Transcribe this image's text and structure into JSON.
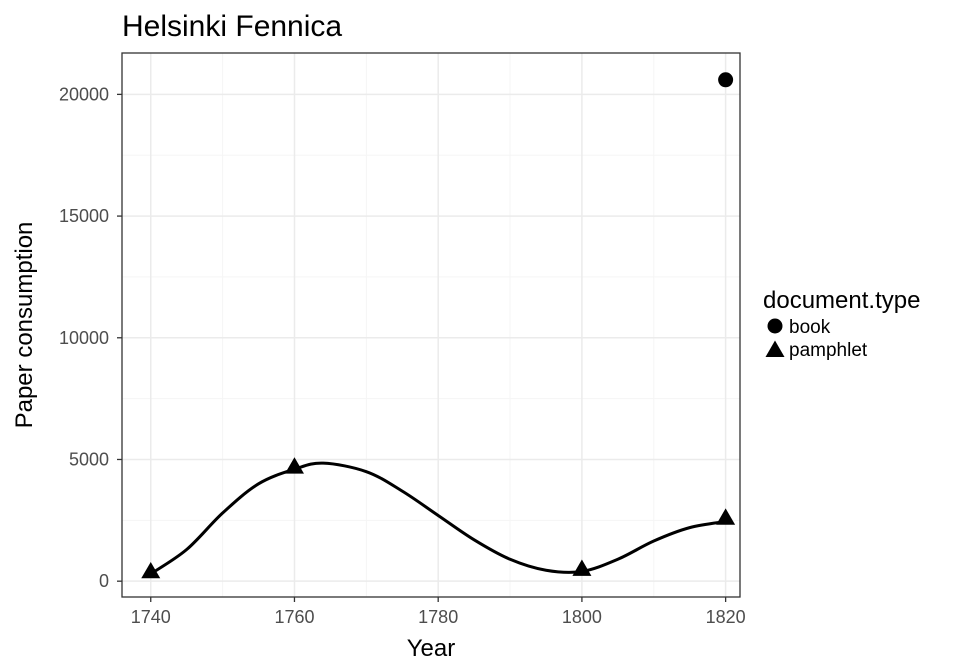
{
  "chart_data": {
    "type": "scatter",
    "title": "Helsinki Fennica",
    "xlabel": "Year",
    "ylabel": "Paper consumption",
    "xlim": [
      1736,
      1822
    ],
    "ylim": [
      -650,
      21700
    ],
    "x_major_ticks": [
      1740,
      1760,
      1780,
      1800,
      1820
    ],
    "x_tick_labels": [
      "1740",
      "1760",
      "1780",
      "1800",
      "1820"
    ],
    "y_major_ticks": [
      0,
      5000,
      10000,
      15000,
      20000
    ],
    "y_tick_labels": [
      "0",
      "5000",
      "10000",
      "15000",
      "20000"
    ],
    "x_minor_ticks": [
      1750,
      1770,
      1790,
      1810
    ],
    "y_minor_ticks": [
      2500,
      7500,
      12500,
      17500
    ],
    "grid": true,
    "legend": {
      "title": "document.type",
      "position": "right",
      "entries": [
        {
          "label": "book",
          "shape": "circle"
        },
        {
          "label": "pamphlet",
          "shape": "triangle"
        }
      ]
    },
    "series": [
      {
        "name": "book",
        "shape": "circle",
        "points": [
          {
            "x": 1820,
            "y": 20600
          }
        ]
      },
      {
        "name": "pamphlet",
        "shape": "triangle",
        "points": [
          {
            "x": 1740,
            "y": 400
          },
          {
            "x": 1760,
            "y": 4700
          },
          {
            "x": 1800,
            "y": 500
          },
          {
            "x": 1820,
            "y": 2600
          }
        ]
      }
    ],
    "smooth_curve": {
      "x": [
        1740,
        1745,
        1750,
        1755,
        1760,
        1764,
        1770,
        1775,
        1780,
        1785,
        1790,
        1795,
        1800,
        1805,
        1810,
        1815,
        1820
      ],
      "y": [
        300,
        1300,
        2800,
        4000,
        4600,
        4850,
        4500,
        3700,
        2700,
        1700,
        900,
        450,
        400,
        900,
        1650,
        2200,
        2450
      ]
    },
    "colors": {
      "background": "#ffffff",
      "panel_border": "#333333",
      "grid_major": "#ebebeb",
      "grid_minor": "#f5f5f5",
      "marks": "#000000"
    }
  }
}
